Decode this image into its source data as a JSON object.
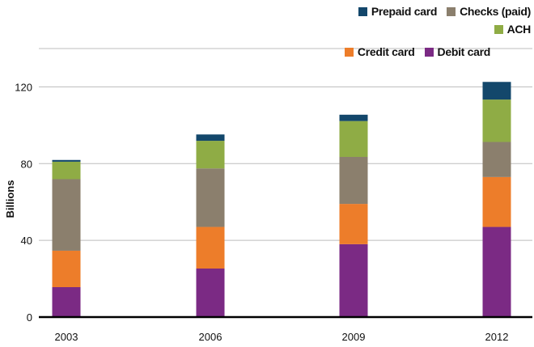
{
  "chart_data": {
    "type": "bar",
    "stacked": true,
    "categories": [
      "2003",
      "2006",
      "2009",
      "2012"
    ],
    "series": [
      {
        "name": "Debit card",
        "color": "#7b2a84",
        "values": [
          15.6,
          25.3,
          38.0,
          47.0
        ]
      },
      {
        "name": "Credit card",
        "color": "#ed7d2a",
        "values": [
          19.0,
          21.7,
          21.0,
          26.0
        ]
      },
      {
        "name": "Checks (paid)",
        "color": "#8b7f6d",
        "values": [
          37.3,
          30.5,
          24.5,
          18.3
        ]
      },
      {
        "name": "ACH",
        "color": "#8fac45",
        "values": [
          9.1,
          14.4,
          18.7,
          22.1
        ]
      },
      {
        "name": "Prepaid card",
        "color": "#13476b",
        "values": [
          0.9,
          3.3,
          3.3,
          9.2
        ]
      }
    ],
    "ylabel": "Billions",
    "xlabel": "",
    "ylim": [
      0,
      140
    ],
    "yticks": [
      0,
      40,
      80,
      120
    ],
    "grid": true,
    "legend_position": "top-right",
    "legend_order": [
      "Prepaid card",
      "Checks (paid)",
      "ACH",
      "Credit card",
      "Debit card"
    ]
  }
}
